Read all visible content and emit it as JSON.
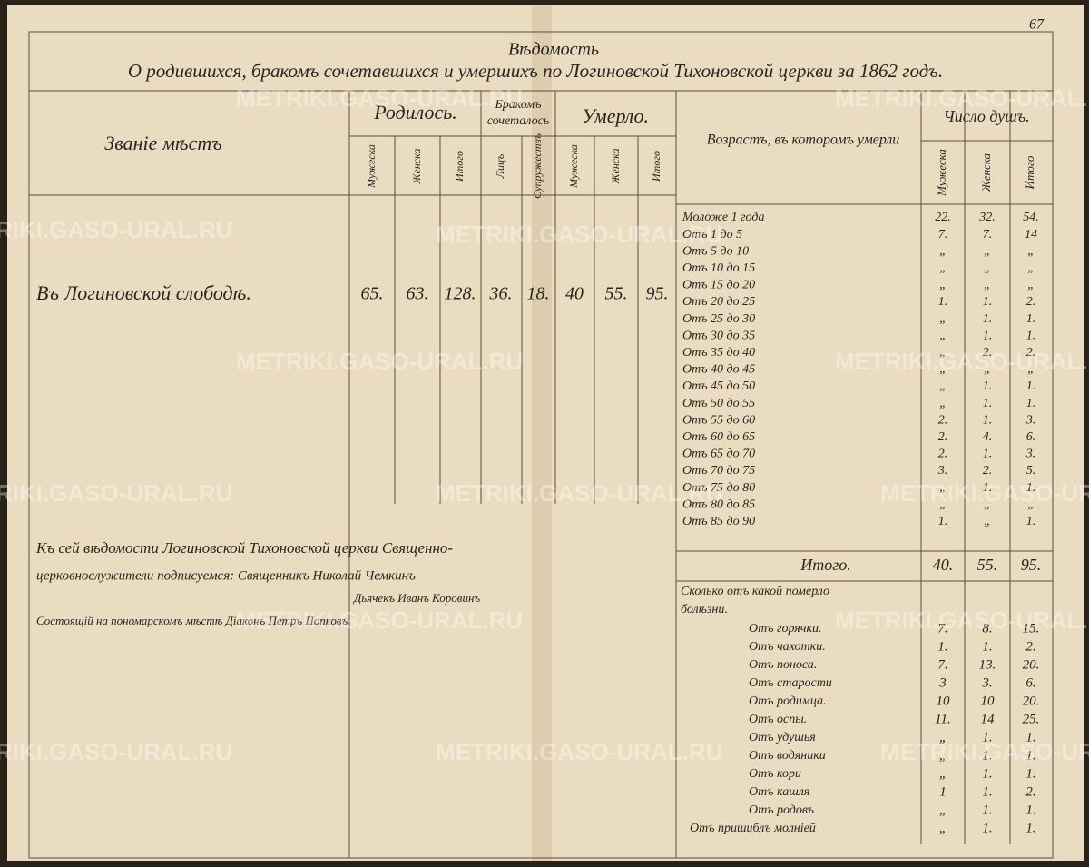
{
  "page_number": "67",
  "header": {
    "title": "Вѣдомость",
    "subtitle": "О родившихся, бракомъ сочетавшихся и умершихъ по Логиновской Тихоновской церкви за 1862 годъ."
  },
  "watermark": "METRIKI.GASO-URAL.RU",
  "left_table": {
    "place_header": "Званіе мѣстъ",
    "born_header": "Родилось.",
    "married_header": [
      "Бракомъ",
      "сочеталось"
    ],
    "died_header": "Умерло.",
    "sub_headers": [
      "Мужеска",
      "Женска",
      "Итого",
      "Лицъ",
      "Супружествъ",
      "Мужеска",
      "Женска",
      "Итого"
    ],
    "rows": [
      [
        "Въ Логиновской слободѣ.",
        "65.",
        "63.",
        "128.",
        "36.",
        "18.",
        "40",
        "55.",
        "95."
      ]
    ]
  },
  "age_table": {
    "header": "Возрастъ, въ которомъ умерли",
    "count_header": "Число душъ.",
    "sub_headers": [
      "Мужеска",
      "Женска",
      "Итого"
    ],
    "rows": [
      [
        "Моложе 1 года",
        "22.",
        "32.",
        "54."
      ],
      [
        "Отъ 1 до 5",
        "7.",
        "7.",
        "14"
      ],
      [
        "Отъ 5 до 10",
        "„",
        "„",
        "„"
      ],
      [
        "Отъ 10 до 15",
        "„",
        "„",
        "„"
      ],
      [
        "Отъ 15 до 20",
        "„",
        "„",
        "„"
      ],
      [
        "Отъ 20 до 25",
        "1.",
        "1.",
        "2."
      ],
      [
        "Отъ 25 до 30",
        "„",
        "1.",
        "1."
      ],
      [
        "Отъ 30 до 35",
        "„",
        "1.",
        "1."
      ],
      [
        "Отъ 35 до 40",
        "„",
        "2.",
        "2."
      ],
      [
        "Отъ 40 до 45",
        "„",
        "„",
        "„"
      ],
      [
        "Отъ 45 до 50",
        "„",
        "1.",
        "1."
      ],
      [
        "Отъ 50 до 55",
        "„",
        "1.",
        "1."
      ],
      [
        "Отъ 55 до 60",
        "2.",
        "1.",
        "3."
      ],
      [
        "Отъ 60 до 65",
        "2.",
        "4.",
        "6."
      ],
      [
        "Отъ 65 до 70",
        "2.",
        "1.",
        "3."
      ],
      [
        "Отъ 70 до 75",
        "3.",
        "2.",
        "5."
      ],
      [
        "Отъ 75 до 80",
        "„",
        "1.",
        "1."
      ],
      [
        "Отъ 80 до 85",
        "„",
        "„",
        "„"
      ],
      [
        "Отъ 85 до 90",
        "1.",
        "„",
        "1."
      ]
    ],
    "total": [
      "Итого.",
      "40.",
      "55.",
      "95."
    ]
  },
  "disease_table": {
    "header": [
      "Сколько отъ какой померло",
      "болѣзни."
    ],
    "rows": [
      [
        "Отъ горячки.",
        "7.",
        "8.",
        "15."
      ],
      [
        "Отъ чахотки.",
        "1.",
        "1.",
        "2."
      ],
      [
        "Отъ поноса.",
        "7.",
        "13.",
        "20."
      ],
      [
        "Отъ старости",
        "3",
        "3.",
        "6."
      ],
      [
        "Отъ родимца.",
        "10",
        "10",
        "20."
      ],
      [
        "Отъ оспы.",
        "11.",
        "14",
        "25."
      ],
      [
        "Отъ удушья",
        "„",
        "1.",
        "1."
      ],
      [
        "Отъ водяники",
        "„",
        "1.",
        "1."
      ],
      [
        "Отъ кори",
        "„",
        "1.",
        "1."
      ],
      [
        "Отъ кашля",
        "1",
        "1.",
        "2."
      ],
      [
        "Отъ родовъ",
        "„",
        "1.",
        "1."
      ],
      [
        "Отъ пришиблъ молніей",
        "„",
        "1.",
        "1."
      ]
    ]
  },
  "signatures": [
    "Къ сей вѣдомости Логиновской Тихоновской церкви Священно-",
    "церковнослужители подписуемся: Священникъ Николай Чемкинъ",
    "Дьячекъ Иванъ Коровинъ",
    "Состоящій на пономарскомъ мѣстѣ Діаконъ Петръ Попковъ"
  ]
}
